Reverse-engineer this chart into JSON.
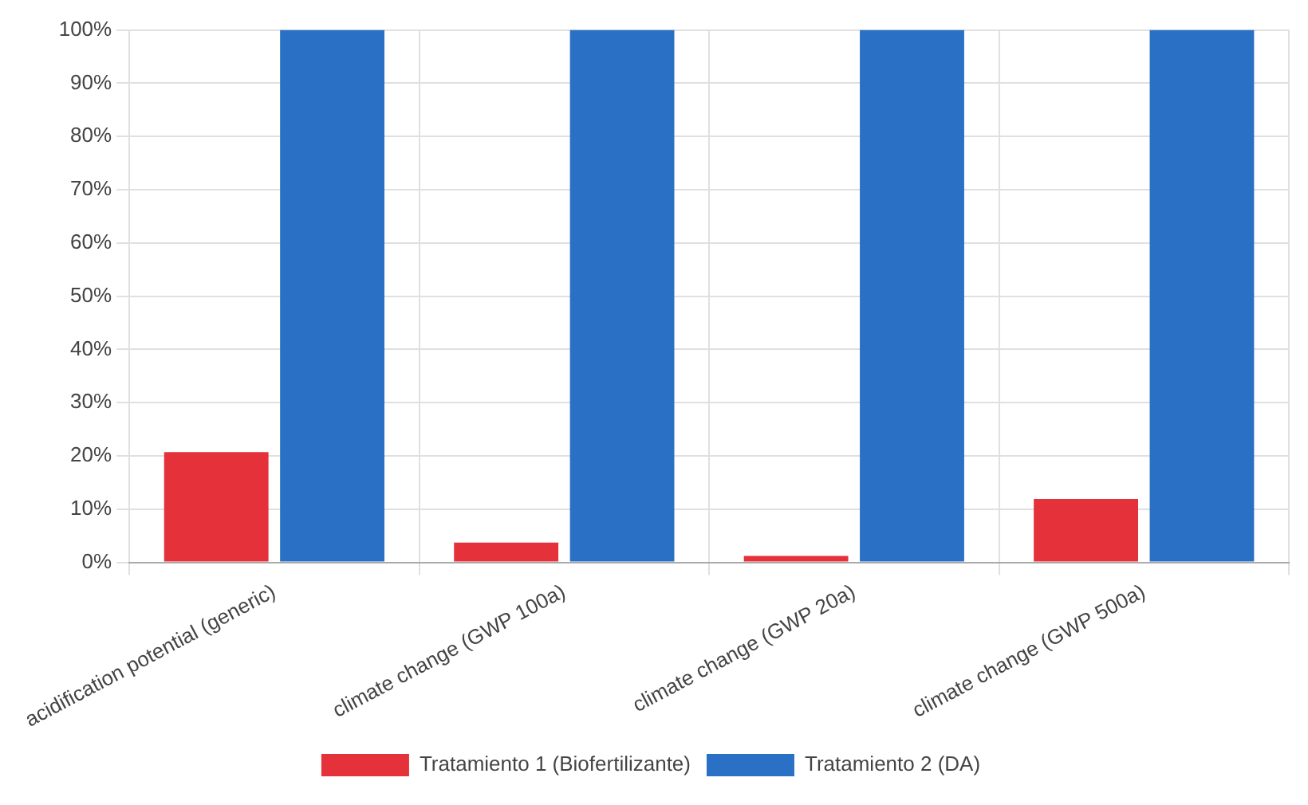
{
  "chart_data": {
    "type": "bar",
    "categories": [
      "acidification potential (generic)",
      "climate change (GWP 100a)",
      "climate change (GWP 20a)",
      "climate change (GWP 500a)"
    ],
    "series": [
      {
        "name": "Tratamiento 1 (Biofertilizante)",
        "color": "#e4313a",
        "values": [
          20.7,
          3.7,
          1.2,
          11.9
        ]
      },
      {
        "name": "Tratamiento 2 (DA)",
        "color": "#2a70c4",
        "values": [
          100,
          100,
          100,
          100
        ]
      }
    ],
    "ylim": [
      0,
      100
    ],
    "yticks": [
      {
        "value": 0,
        "label": "0%"
      },
      {
        "value": 10,
        "label": "10%"
      },
      {
        "value": 20,
        "label": "20%"
      },
      {
        "value": 30,
        "label": "30%"
      },
      {
        "value": 40,
        "label": "40%"
      },
      {
        "value": 50,
        "label": "50%"
      },
      {
        "value": 60,
        "label": "60%"
      },
      {
        "value": 70,
        "label": "70%"
      },
      {
        "value": 80,
        "label": "80%"
      },
      {
        "value": 90,
        "label": "90%"
      },
      {
        "value": 100,
        "label": "100%"
      }
    ],
    "grid": true,
    "legend": "bottom"
  }
}
